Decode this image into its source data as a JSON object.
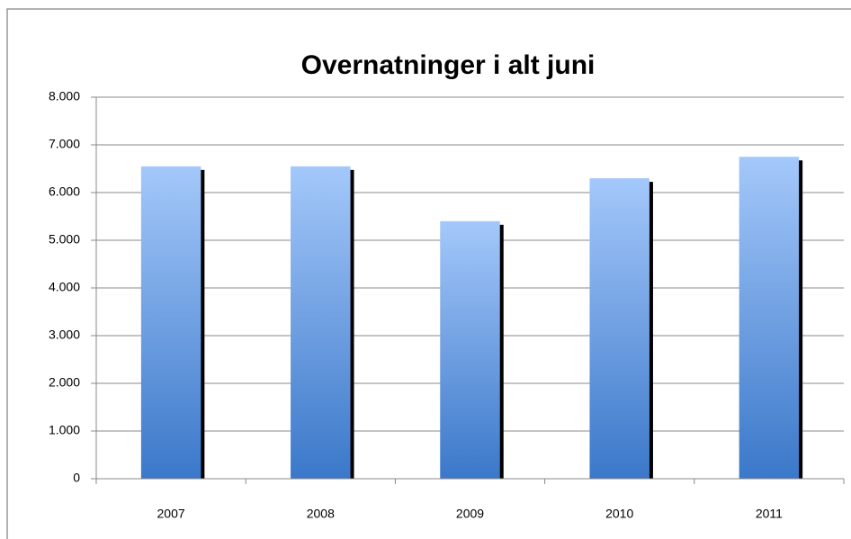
{
  "chart_data": {
    "type": "bar",
    "title": "Overnatninger i alt juni",
    "categories": [
      "2007",
      "2008",
      "2009",
      "2010",
      "2011"
    ],
    "values": [
      6550,
      6550,
      5400,
      6300,
      6750
    ],
    "color": "#5a91df",
    "ylim": [
      0,
      8000
    ],
    "yticks": [
      0,
      {
        "value": 1000,
        "label": "1.000"
      },
      {
        "value": 2000,
        "label": "2.000"
      },
      {
        "value": 3000,
        "label": "3.000"
      },
      {
        "value": 4000,
        "label": "4.000"
      },
      {
        "value": 5000,
        "label": "5.000"
      },
      {
        "value": 6000,
        "label": "6.000"
      },
      {
        "value": 7000,
        "label": "7.000"
      },
      {
        "value": 8000,
        "label": "8.000"
      }
    ],
    "grid": true
  }
}
